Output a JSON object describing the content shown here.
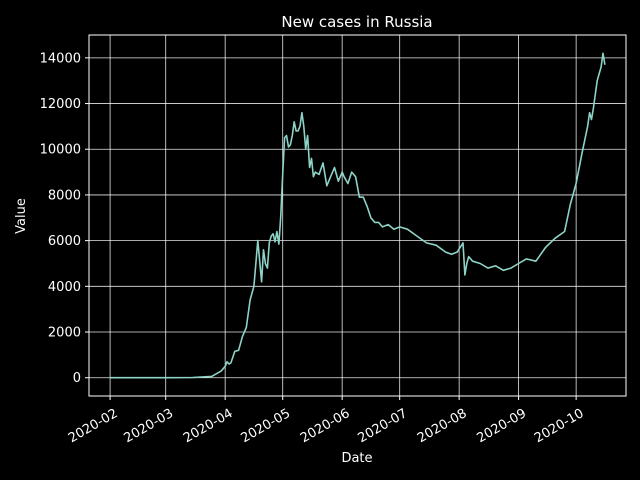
{
  "chart_data": {
    "type": "line",
    "title": "New cases in Russia",
    "xlabel": "Date",
    "ylabel": "Value",
    "grid": true,
    "background": "#000000",
    "foreground": "#ffffff",
    "line_color": "#8dd3c7",
    "xlim": [
      "2020-01-21",
      "2020-10-27"
    ],
    "ylim": [
      -800,
      15000
    ],
    "x_ticks": [
      {
        "date": "2020-02-01",
        "label": "2020-02"
      },
      {
        "date": "2020-03-01",
        "label": "2020-03"
      },
      {
        "date": "2020-04-01",
        "label": "2020-04"
      },
      {
        "date": "2020-05-01",
        "label": "2020-05"
      },
      {
        "date": "2020-06-01",
        "label": "2020-06"
      },
      {
        "date": "2020-07-01",
        "label": "2020-07"
      },
      {
        "date": "2020-08-01",
        "label": "2020-08"
      },
      {
        "date": "2020-09-01",
        "label": "2020-09"
      },
      {
        "date": "2020-10-01",
        "label": "2020-10"
      }
    ],
    "y_ticks": [
      0,
      2000,
      4000,
      6000,
      8000,
      10000,
      12000,
      14000
    ],
    "series": [
      {
        "x": [
          "2020-02-01",
          "2020-03-01",
          "2020-03-15",
          "2020-03-25",
          "2020-03-30",
          "2020-04-01",
          "2020-04-02",
          "2020-04-03",
          "2020-04-04",
          "2020-04-05",
          "2020-04-06",
          "2020-04-08",
          "2020-04-10",
          "2020-04-12",
          "2020-04-14",
          "2020-04-16",
          "2020-04-18",
          "2020-04-20",
          "2020-04-21",
          "2020-04-22",
          "2020-04-23",
          "2020-04-24",
          "2020-04-25",
          "2020-04-26",
          "2020-04-27",
          "2020-04-28",
          "2020-04-29",
          "2020-04-30",
          "2020-05-01",
          "2020-05-02",
          "2020-05-03",
          "2020-05-04",
          "2020-05-05",
          "2020-05-06",
          "2020-05-07",
          "2020-05-08",
          "2020-05-09",
          "2020-05-10",
          "2020-05-11",
          "2020-05-12",
          "2020-05-13",
          "2020-05-14",
          "2020-05-15",
          "2020-05-16",
          "2020-05-17",
          "2020-05-18",
          "2020-05-20",
          "2020-05-22",
          "2020-05-24",
          "2020-05-26",
          "2020-05-28",
          "2020-05-30",
          "2020-06-01",
          "2020-06-02",
          "2020-06-04",
          "2020-06-06",
          "2020-06-08",
          "2020-06-10",
          "2020-06-12",
          "2020-06-14",
          "2020-06-16",
          "2020-06-18",
          "2020-06-20",
          "2020-06-22",
          "2020-06-25",
          "2020-06-28",
          "2020-07-01",
          "2020-07-05",
          "2020-07-10",
          "2020-07-15",
          "2020-07-20",
          "2020-07-25",
          "2020-07-28",
          "2020-07-31",
          "2020-08-03",
          "2020-08-04",
          "2020-08-05",
          "2020-08-06",
          "2020-08-08",
          "2020-08-12",
          "2020-08-16",
          "2020-08-20",
          "2020-08-24",
          "2020-08-28",
          "2020-09-01",
          "2020-09-05",
          "2020-09-10",
          "2020-09-15",
          "2020-09-20",
          "2020-09-25",
          "2020-09-28",
          "2020-10-01",
          "2020-10-04",
          "2020-10-07",
          "2020-10-08",
          "2020-10-09",
          "2020-10-10",
          "2020-10-12",
          "2020-10-14",
          "2020-10-15",
          "2020-10-16"
        ],
        "y": [
          0,
          0,
          10,
          60,
          300,
          500,
          700,
          600,
          650,
          900,
          1150,
          1200,
          1800,
          2200,
          3400,
          4000,
          6000,
          4200,
          5600,
          5000,
          4800,
          5900,
          6200,
          6300,
          5950,
          6400,
          5850,
          7100,
          8900,
          10500,
          10600,
          10100,
          10200,
          10600,
          11200,
          10800,
          10800,
          11000,
          11600,
          11000,
          10000,
          10600,
          9200,
          9600,
          8800,
          9000,
          8900,
          9400,
          8400,
          8800,
          9200,
          8600,
          9000,
          8800,
          8500,
          9000,
          8800,
          7900,
          7900,
          7500,
          7000,
          6800,
          6800,
          6600,
          6700,
          6500,
          6600,
          6500,
          6200,
          5900,
          5800,
          5500,
          5400,
          5500,
          5900,
          4500,
          5000,
          5300,
          5100,
          5000,
          4800,
          4900,
          4700,
          4800,
          5000,
          5200,
          5100,
          5700,
          6100,
          6400,
          7600,
          8500,
          9800,
          11000,
          11600,
          11300,
          11800,
          13000,
          13600,
          14200,
          13700
        ]
      }
    ]
  }
}
